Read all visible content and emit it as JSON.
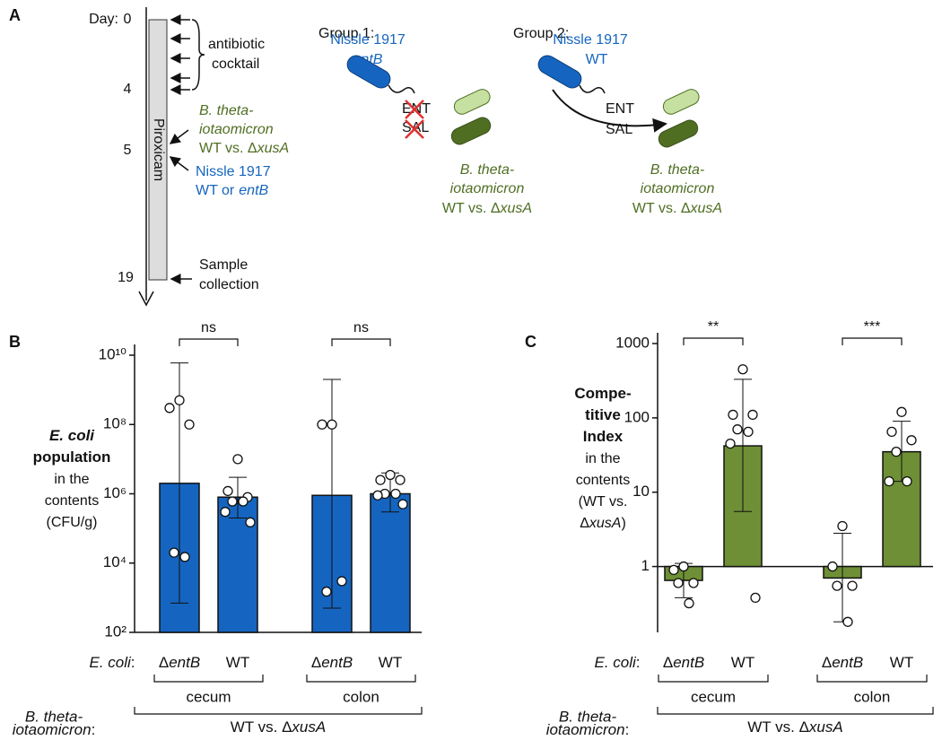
{
  "panel_labels": [
    "A",
    "B",
    "C"
  ],
  "timeline": {
    "day_label": "Day:",
    "days": [
      0,
      4,
      5,
      19
    ],
    "drug": "Piroxicam",
    "antibiotic": [
      "antibiotic",
      "cocktail"
    ],
    "bt": [
      "B. theta-",
      "iotaomicron",
      "WT vs. ΔxusA"
    ],
    "nissle": [
      "Nissle 1917",
      "WT or",
      "entB"
    ],
    "sample": [
      "Sample",
      "collection"
    ]
  },
  "groups": [
    {
      "title": "Group 1:",
      "strain": [
        "Nissle 1917",
        "entB"
      ],
      "molecules": [
        "ENT",
        "SAL"
      ],
      "target": [
        "B. theta-",
        "iotaomicron",
        "WT vs. ΔxusA"
      ]
    },
    {
      "title": "Group 2:",
      "strain": [
        "Nissle 1917",
        "WT"
      ],
      "molecules": [
        "ENT",
        "SAL"
      ],
      "target": [
        "B. theta-",
        "iotaomicron",
        "WT vs. ΔxusA"
      ]
    }
  ],
  "chart_data": [
    {
      "type": "bar",
      "ylabel": [
        "E. coli",
        "population",
        "in the",
        "contents",
        "(CFU/g)"
      ],
      "ylabel_bold_lines": 2,
      "ylabel_italic_lines": 1,
      "log_scale": true,
      "ylim": [
        100,
        10000000000
      ],
      "yticks": [
        {
          "value": 100,
          "label": "10²"
        },
        {
          "value": 10000,
          "label": "10⁴"
        },
        {
          "value": 1000000,
          "label": "10⁶"
        },
        {
          "value": 100000000,
          "label": "10⁸"
        },
        {
          "value": 10000000000,
          "label": "10¹⁰"
        }
      ],
      "categories": [
        "ΔentB",
        "WT",
        "ΔentB",
        "WT"
      ],
      "values": [
        2000000,
        800000,
        900000,
        1000000
      ],
      "error_low": [
        700,
        200000,
        500,
        300000
      ],
      "error_high": [
        6000000000,
        3000000,
        2000000000,
        4000000
      ],
      "points": [
        [
          500000000,
          300000000,
          100000000,
          20000,
          15000
        ],
        [
          10000000,
          1200000,
          800000,
          600000,
          600000,
          300000,
          150000
        ],
        [
          100000000,
          100000000,
          3000,
          1500
        ],
        [
          3500000,
          2500000,
          2500000,
          1000000,
          1000000,
          900000,
          500000
        ]
      ],
      "color": "#1565c0",
      "significance": [
        "ns",
        "ns"
      ],
      "x_row_label": "E. coli:",
      "sites": [
        "cecum",
        "colon"
      ],
      "group_row_label": [
        "B. theta-",
        "iotaomicron:"
      ],
      "group_label": "WT vs. ΔxusA"
    },
    {
      "type": "bar",
      "ylabel": [
        "Compe-",
        "titive",
        "Index",
        "in the",
        "contents",
        "(WT vs.",
        "ΔxusA)"
      ],
      "ylabel_bold_lines": 3,
      "ylabel_italic_lines": 0,
      "log_scale": true,
      "ylim": [
        0.13,
        1000
      ],
      "yticks": [
        1,
        10,
        100,
        1000
      ],
      "categories": [
        "ΔentB",
        "WT",
        "ΔentB",
        "WT"
      ],
      "values": [
        0.65,
        42,
        0.7,
        35
      ],
      "error_low": [
        0.38,
        5.5,
        0.18,
        14
      ],
      "error_high": [
        1.1,
        330,
        2.8,
        90
      ],
      "points": [
        [
          1.0,
          0.9,
          0.6,
          0.6,
          0.32
        ],
        [
          450,
          110,
          110,
          70,
          65,
          45,
          0.38
        ],
        [
          3.5,
          1.0,
          0.55,
          0.55,
          0.18
        ],
        [
          120,
          65,
          50,
          35,
          14,
          14
        ]
      ],
      "color": "#6e8f35",
      "significance": [
        "**",
        "***"
      ],
      "x_row_label": "E. coli:",
      "sites": [
        "cecum",
        "colon"
      ],
      "group_row_label": [
        "B. theta-",
        "iotaomicron:"
      ],
      "group_label": "WT vs. ΔxusA"
    }
  ]
}
